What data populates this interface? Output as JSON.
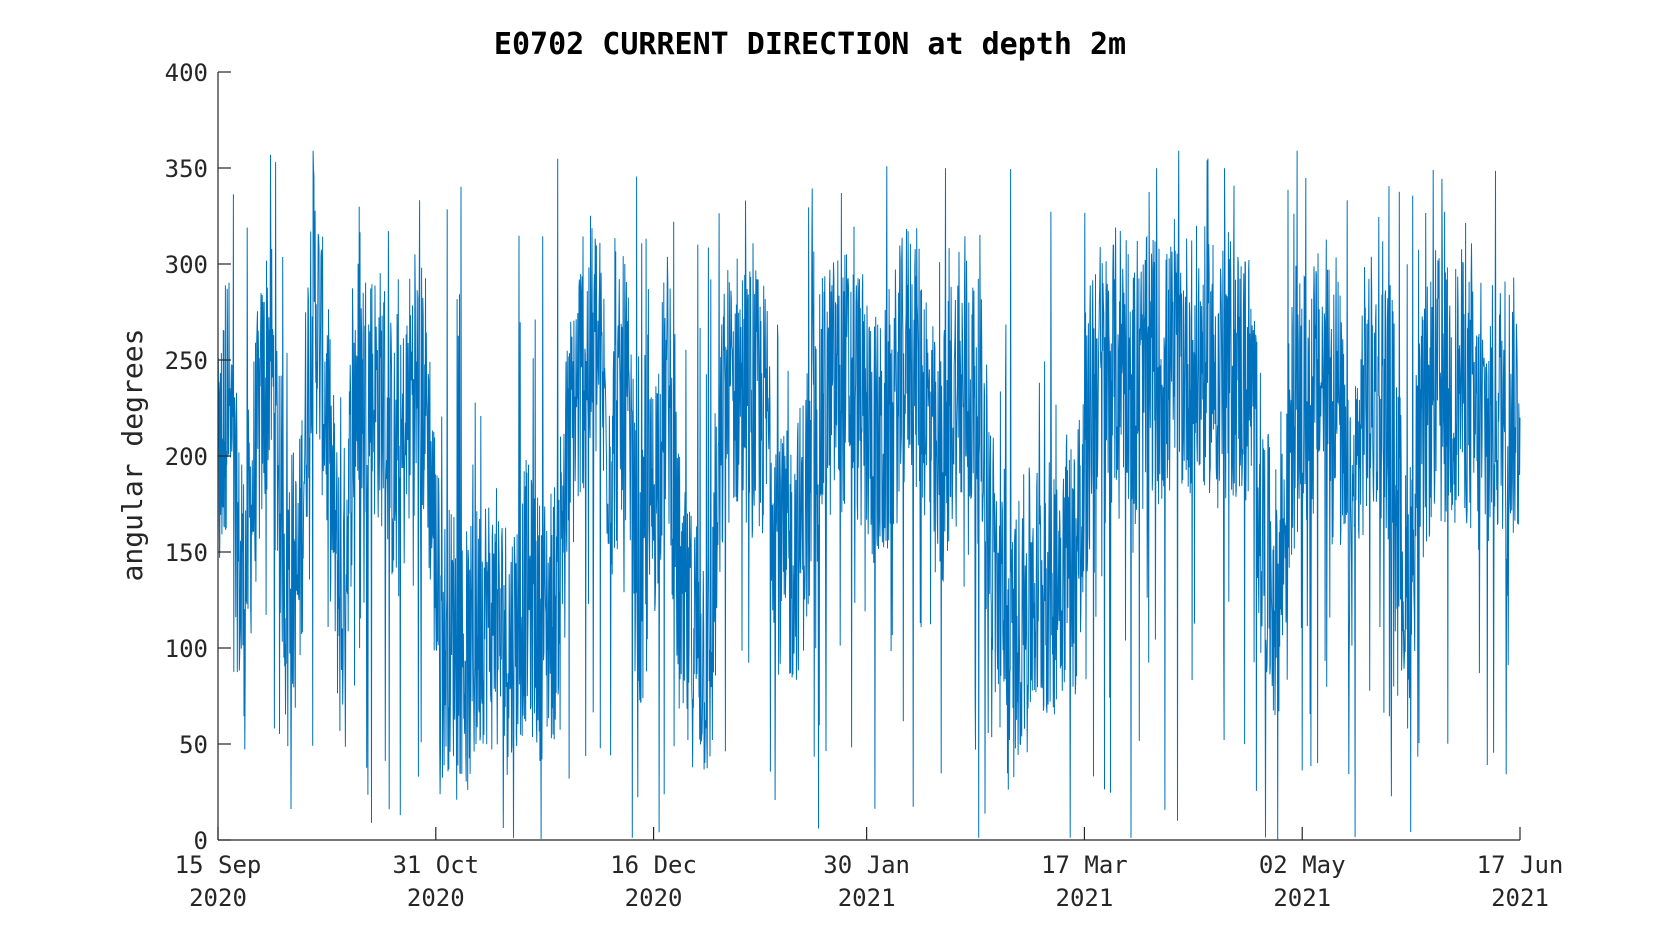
{
  "chart_data": {
    "type": "line",
    "title": "E0702 CURRENT DIRECTION at depth 2m",
    "xlabel": "",
    "ylabel": "angular degrees",
    "ylim": [
      0,
      400
    ],
    "xlim": [
      "2020-09-15",
      "2021-06-17"
    ],
    "yticks": [
      0,
      50,
      100,
      150,
      200,
      250,
      300,
      350,
      400
    ],
    "xticks": [
      {
        "date": "2020-09-15",
        "line1": "15 Sep",
        "line2": "2020"
      },
      {
        "date": "2020-10-31",
        "line1": "31 Oct",
        "line2": "2020"
      },
      {
        "date": "2020-12-16",
        "line1": "16 Dec",
        "line2": "2020"
      },
      {
        "date": "2021-01-30",
        "line1": "30 Jan",
        "line2": "2021"
      },
      {
        "date": "2021-03-17",
        "line1": "17 Mar",
        "line2": "2021"
      },
      {
        "date": "2021-05-02",
        "line1": "02 May",
        "line2": "2021"
      },
      {
        "date": "2021-06-17",
        "line1": "17 Jun",
        "line2": "2021"
      }
    ],
    "grid": false,
    "color": "#0072BD",
    "series": [
      {
        "x": [
          "2020-09-15",
          "2020-09-17",
          "2020-09-20",
          "2020-09-23",
          "2020-09-26",
          "2020-09-29",
          "2020-10-02",
          "2020-10-05",
          "2020-10-08",
          "2020-10-11",
          "2020-10-14",
          "2020-10-17",
          "2020-10-20",
          "2020-10-23",
          "2020-10-26",
          "2020-10-29",
          "2020-11-01",
          "2020-11-04",
          "2020-11-07",
          "2020-11-10",
          "2020-11-13",
          "2020-11-16",
          "2020-11-19",
          "2020-11-22",
          "2020-11-25",
          "2020-11-28",
          "2020-12-01",
          "2020-12-04",
          "2020-12-07",
          "2020-12-10",
          "2020-12-13",
          "2020-12-16",
          "2020-12-19",
          "2020-12-22",
          "2020-12-25",
          "2020-12-28",
          "2020-12-31",
          "2021-01-03",
          "2021-01-06",
          "2021-01-09",
          "2021-01-12",
          "2021-01-15",
          "2021-01-18",
          "2021-01-21",
          "2021-01-24",
          "2021-01-27",
          "2021-01-30",
          "2021-02-02",
          "2021-02-05",
          "2021-02-08",
          "2021-02-11",
          "2021-02-14",
          "2021-02-17",
          "2021-02-20",
          "2021-02-23",
          "2021-02-26",
          "2021-03-01",
          "2021-03-04",
          "2021-03-07",
          "2021-03-10",
          "2021-03-13",
          "2021-03-16",
          "2021-03-19",
          "2021-03-22",
          "2021-03-25",
          "2021-03-28",
          "2021-03-31",
          "2021-04-03",
          "2021-04-06",
          "2021-04-09",
          "2021-04-12",
          "2021-04-15",
          "2021-04-18",
          "2021-04-21",
          "2021-04-24",
          "2021-04-27",
          "2021-04-30",
          "2021-05-03",
          "2021-05-06",
          "2021-05-09",
          "2021-05-12",
          "2021-05-15",
          "2021-05-18",
          "2021-05-21",
          "2021-05-24",
          "2021-05-27",
          "2021-05-30",
          "2021-06-02",
          "2021-06-05",
          "2021-06-08",
          "2021-06-11",
          "2021-06-14",
          "2021-06-17"
        ],
        "y": [
          180,
          240,
          120,
          200,
          260,
          150,
          130,
          300,
          220,
          110,
          240,
          235,
          230,
          180,
          240,
          230,
          100,
          110,
          90,
          120,
          110,
          100,
          130,
          110,
          120,
          200,
          250,
          260,
          200,
          240,
          120,
          180,
          240,
          100,
          110,
          90,
          230,
          240,
          230,
          220,
          140,
          150,
          180,
          230,
          240,
          240,
          220,
          200,
          230,
          260,
          240,
          180,
          230,
          240,
          220,
          140,
          90,
          120,
          130,
          130,
          150,
          140,
          250,
          240,
          260,
          230,
          250,
          240,
          250,
          250,
          250,
          250,
          245,
          240,
          150,
          120,
          220,
          230,
          240,
          250,
          150,
          230,
          240,
          220,
          120,
          200,
          240,
          230,
          240,
          210,
          220,
          230,
          220
        ]
      }
    ]
  }
}
